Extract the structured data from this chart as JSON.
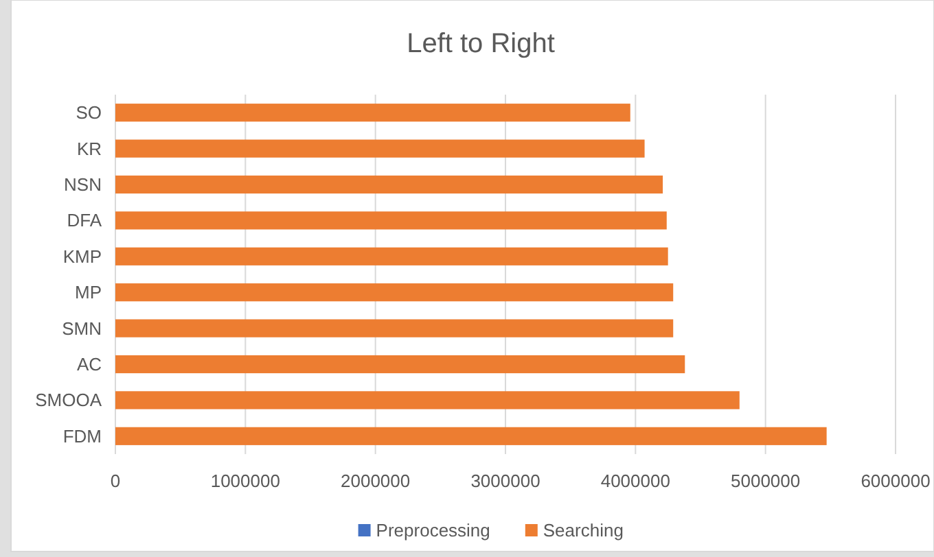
{
  "chart_data": {
    "type": "bar",
    "orientation": "horizontal",
    "stacked": true,
    "title": "Left to Right",
    "categories": [
      "SO",
      "KR",
      "NSN",
      "DFA",
      "KMP",
      "MP",
      "SMN",
      "AC",
      "SMOOA",
      "FDM"
    ],
    "series": [
      {
        "name": "Preprocessing",
        "color": "#4472c4",
        "values": [
          0,
          0,
          0,
          0,
          0,
          0,
          0,
          0,
          0,
          0
        ]
      },
      {
        "name": "Searching",
        "color": "#ed7d31",
        "values": [
          3960000,
          4070000,
          4210000,
          4240000,
          4250000,
          4290000,
          4290000,
          4380000,
          4800000,
          5470000
        ]
      }
    ],
    "xlim": [
      0,
      6000000
    ],
    "xticks": [
      0,
      1000000,
      2000000,
      3000000,
      4000000,
      5000000,
      6000000
    ],
    "grid": "x",
    "legend": "bottom"
  }
}
